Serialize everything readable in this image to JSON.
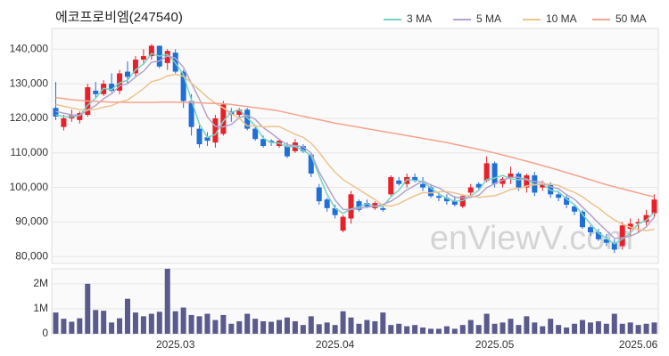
{
  "chart_data": [
    {
      "type": "candlestick",
      "title": "에코프로비엠(247540)",
      "watermark": "enViewV.com",
      "up_color": "#e8202a",
      "down_color": "#1f6fd6",
      "open": [
        123000,
        117500,
        120000,
        119500,
        121000,
        128000,
        127000,
        130000,
        128000,
        133500,
        133000,
        137000,
        138000,
        141000,
        136000,
        139000,
        133500,
        125000,
        117000,
        114500,
        113000,
        115500,
        122000,
        121000,
        122500,
        117000,
        114000,
        113500,
        112000,
        112000,
        110500,
        112000,
        109500,
        100000,
        96500,
        94000,
        87500,
        91000,
        96000,
        95500,
        94000,
        94000,
        98000,
        102000,
        101000,
        103000,
        101000,
        100000,
        97500,
        97000,
        96000,
        94500,
        98500,
        101000,
        102000,
        107000,
        101000,
        103000,
        104000,
        100000,
        103500,
        100000,
        101000,
        98000,
        97000,
        94500,
        93000,
        88500,
        87000,
        85000,
        84000,
        83000,
        88000,
        89500,
        90000,
        92500
      ],
      "high": [
        130500,
        121000,
        122500,
        122000,
        130000,
        130500,
        131000,
        133000,
        134000,
        136500,
        138000,
        140000,
        141500,
        141000,
        140000,
        140000,
        134000,
        127000,
        118000,
        116000,
        121000,
        125000,
        123000,
        123000,
        123000,
        117500,
        115000,
        114000,
        114000,
        113000,
        114000,
        112500,
        110000,
        101000,
        97000,
        95000,
        92000,
        99000,
        96500,
        96500,
        96000,
        95000,
        103500,
        103000,
        104000,
        104000,
        103000,
        101000,
        98500,
        98000,
        97500,
        98000,
        101000,
        101500,
        109000,
        107500,
        103000,
        106000,
        104500,
        104000,
        104500,
        102000,
        101500,
        99000,
        98000,
        95000,
        93500,
        89000,
        88000,
        86500,
        85000,
        90000,
        91000,
        91000,
        93500,
        98000
      ],
      "low": [
        119500,
        116500,
        119000,
        118500,
        120500,
        126000,
        126500,
        127500,
        127000,
        130000,
        132000,
        135500,
        137000,
        134500,
        134000,
        133000,
        123000,
        115000,
        111500,
        112000,
        111500,
        115000,
        119000,
        120000,
        116500,
        113500,
        111500,
        112000,
        111500,
        108500,
        110000,
        110000,
        103000,
        95000,
        93000,
        91000,
        87000,
        89500,
        93000,
        94000,
        93500,
        93000,
        97500,
        100500,
        100000,
        101500,
        99000,
        97000,
        96000,
        95000,
        94500,
        94000,
        97000,
        99500,
        101500,
        100000,
        100000,
        101000,
        99000,
        98500,
        97500,
        99000,
        97000,
        96000,
        94000,
        92000,
        88000,
        86000,
        84500,
        83000,
        81000,
        82000,
        86000,
        87000,
        89000,
        91500
      ],
      "close": [
        120500,
        120000,
        121000,
        121500,
        129000,
        127000,
        130000,
        128000,
        133000,
        132000,
        137000,
        138000,
        141000,
        135000,
        139500,
        133500,
        125000,
        117500,
        112500,
        113500,
        120000,
        124000,
        121000,
        122500,
        117000,
        114000,
        112000,
        113000,
        113500,
        109000,
        113000,
        110500,
        104000,
        96000,
        94000,
        92000,
        91500,
        98000,
        93500,
        94500,
        95500,
        93500,
        103000,
        101000,
        103000,
        102000,
        100000,
        97500,
        97000,
        96000,
        95000,
        97500,
        100000,
        100000,
        107000,
        101000,
        102500,
        104000,
        100000,
        103500,
        98500,
        101000,
        98000,
        97000,
        95000,
        93000,
        88500,
        87000,
        85000,
        84000,
        82000,
        89000,
        89500,
        90000,
        92000,
        96500
      ],
      "series": [
        {
          "name": "3 MA",
          "color": "#74d3c4",
          "values": [
            121000,
            120500,
            120500,
            120800,
            123800,
            125800,
            128700,
            128300,
            130300,
            131000,
            134000,
            135700,
            138700,
            138000,
            138500,
            136000,
            132700,
            125300,
            118300,
            114500,
            115300,
            119200,
            121700,
            122500,
            120200,
            117800,
            114300,
            113000,
            112800,
            111800,
            111800,
            110800,
            109200,
            103500,
            98000,
            94000,
            92500,
            93800,
            94300,
            95300,
            94500,
            94500,
            97300,
            99200,
            102300,
            102000,
            101700,
            99800,
            98200,
            96800,
            96000,
            96200,
            97500,
            99200,
            102300,
            102700,
            103500,
            102500,
            102200,
            102500,
            100700,
            101000,
            99200,
            98700,
            96700,
            95000,
            92200,
            89500,
            86800,
            85300,
            83700,
            85000,
            86800,
            89500,
            90500,
            92800
          ]
        },
        {
          "name": "5 MA",
          "color": "#b4a3cc",
          "values": [
            122000,
            121500,
            121000,
            120800,
            122400,
            123700,
            125700,
            127100,
            129400,
            130000,
            132000,
            133600,
            136200,
            136600,
            138100,
            137400,
            134800,
            130100,
            125600,
            120400,
            117700,
            117500,
            118200,
            120200,
            120900,
            119700,
            117300,
            115700,
            113900,
            112300,
            112100,
            111800,
            110000,
            104500,
            100400,
            96400,
            93600,
            93600,
            93900,
            94300,
            94600,
            95100,
            96000,
            97500,
            99300,
            100600,
            101900,
            100700,
            99900,
            98500,
            97100,
            97000,
            97100,
            97700,
            99900,
            101100,
            102100,
            102900,
            102900,
            102200,
            101700,
            101500,
            100200,
            99600,
            97900,
            96600,
            94300,
            92100,
            89700,
            87500,
            85300,
            85400,
            85900,
            86900,
            88600,
            91400
          ]
        },
        {
          "name": "10 MA",
          "color": "#ecc48e",
          "values": [
            124000,
            123500,
            123000,
            122500,
            122400,
            122600,
            123200,
            123700,
            124700,
            125300,
            126900,
            128600,
            130600,
            131200,
            132300,
            132700,
            132200,
            130200,
            128200,
            126100,
            124400,
            123000,
            121300,
            120000,
            117800,
            117800,
            117500,
            117600,
            117600,
            116500,
            115400,
            114500,
            112800,
            110200,
            107100,
            104400,
            102300,
            100800,
            99400,
            97900,
            96500,
            94800,
            94600,
            95300,
            96500,
            97600,
            98500,
            98400,
            98700,
            98800,
            98400,
            97800,
            97500,
            97100,
            97400,
            97600,
            98400,
            99400,
            99700,
            100400,
            100800,
            101100,
            100900,
            100600,
            99400,
            98600,
            97300,
            95600,
            94100,
            92200,
            90600,
            89400,
            88500,
            87800,
            87500,
            87900
          ]
        },
        {
          "name": "50 MA",
          "color": "#f4a38e",
          "values": [
            126000,
            125700,
            125400,
            125200,
            125000,
            124900,
            124800,
            124700,
            124700,
            124600,
            124600,
            124600,
            124600,
            124700,
            124700,
            124700,
            124600,
            124600,
            124500,
            124400,
            124300,
            124200,
            124000,
            123700,
            123400,
            123100,
            122800,
            122500,
            122100,
            121600,
            121100,
            120600,
            120100,
            119600,
            119100,
            118600,
            118200,
            117800,
            117400,
            117000,
            116600,
            116200,
            115800,
            115400,
            115000,
            114600,
            114200,
            113800,
            113400,
            113000,
            112500,
            112000,
            111500,
            111000,
            110500,
            110000,
            109400,
            108800,
            108200,
            107600,
            107000,
            106300,
            105700,
            105000,
            104300,
            103600,
            102900,
            102200,
            101500,
            100800,
            100200,
            99600,
            99000,
            98400,
            97800,
            97300
          ]
        }
      ],
      "ylim": [
        78000,
        146000
      ],
      "yticks": [
        {
          "value": 80000,
          "label": "80,000"
        },
        {
          "value": 90000,
          "label": "90,000"
        },
        {
          "value": 100000,
          "label": "100,000"
        },
        {
          "value": 110000,
          "label": "110,000"
        },
        {
          "value": 120000,
          "label": "120,000"
        },
        {
          "value": 130000,
          "label": "130,000"
        },
        {
          "value": 140000,
          "label": "140,000"
        }
      ],
      "grid": true
    },
    {
      "type": "bar",
      "color": "#5a5a8c",
      "categories": [
        null,
        null,
        null,
        null,
        null,
        null,
        null,
        null,
        null,
        null,
        null,
        null,
        null,
        null,
        null,
        "2025.03",
        null,
        null,
        null,
        null,
        null,
        null,
        null,
        null,
        null,
        null,
        null,
        null,
        null,
        null,
        null,
        null,
        null,
        null,
        null,
        "2025.04",
        null,
        null,
        null,
        null,
        null,
        null,
        null,
        null,
        null,
        null,
        null,
        null,
        null,
        null,
        null,
        null,
        null,
        null,
        null,
        "2025.05",
        null,
        null,
        null,
        null,
        null,
        null,
        null,
        null,
        null,
        null,
        null,
        null,
        null,
        null,
        null,
        null,
        null,
        "2025.06",
        null,
        null
      ],
      "values": [
        850000,
        600000,
        480000,
        620000,
        2000000,
        950000,
        920000,
        450000,
        620000,
        1400000,
        850000,
        700000,
        800000,
        880000,
        2600000,
        900000,
        1050000,
        750000,
        700000,
        800000,
        550000,
        750000,
        400000,
        500000,
        800000,
        600000,
        500000,
        480000,
        550000,
        650000,
        500000,
        350000,
        700000,
        380000,
        450000,
        350000,
        900000,
        650000,
        400000,
        550000,
        500000,
        850000,
        350000,
        400000,
        300000,
        350000,
        250000,
        200000,
        200000,
        300000,
        200000,
        350000,
        550000,
        350000,
        800000,
        400000,
        450000,
        600000,
        350000,
        700000,
        450000,
        300000,
        600000,
        350000,
        250000,
        400000,
        550000,
        450000,
        500000,
        400000,
        800000,
        400000,
        450000,
        350000,
        400000,
        450000
      ],
      "ylim": [
        0,
        2600000
      ],
      "yticks": [
        0,
        {
          "value": 1000000,
          "label": "1M"
        },
        {
          "value": 2000000,
          "label": "2M"
        }
      ]
    }
  ]
}
